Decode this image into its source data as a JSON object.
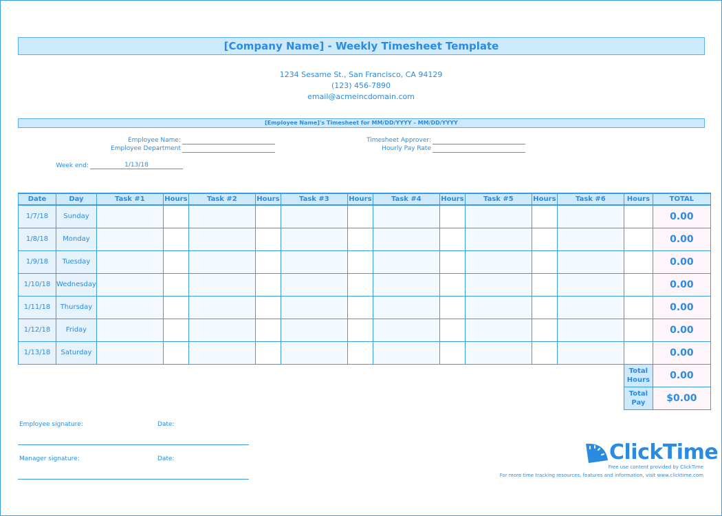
{
  "title": "[Company Name] - Weekly Timesheet Template",
  "address": {
    "street": "1234 Sesame St.,  San Francisco, CA 94129",
    "phone": "(123) 456-7890",
    "email": "email@acmeincdomain.com"
  },
  "band": "[Employee Name]'s Timesheet for MM/DD/YYYY - MM/DD/YYYY",
  "fields": {
    "employee_name": "Employee Name:",
    "employee_department": "Employee Department",
    "approver": "Timesheet Approver:",
    "pay_rate": "Hourly Pay Rate",
    "week_end_label": "Week end:",
    "week_end_value": "1/13/18"
  },
  "table": {
    "headers": [
      "Date",
      "Day",
      "Task #1",
      "Hours",
      "Task #2",
      "Hours",
      "Task #3",
      "Hours",
      "Task #4",
      "Hours",
      "Task #5",
      "Hours",
      "Task #6",
      "Hours",
      "TOTAL"
    ],
    "rows": [
      {
        "date": "1/7/18",
        "day": "Sunday",
        "total": "0.00"
      },
      {
        "date": "1/8/18",
        "day": "Monday",
        "total": "0.00"
      },
      {
        "date": "1/9/18",
        "day": "Tuesday",
        "total": "0.00"
      },
      {
        "date": "1/10/18",
        "day": "Wednesday",
        "total": "0.00"
      },
      {
        "date": "1/11/18",
        "day": "Thursday",
        "total": "0.00"
      },
      {
        "date": "1/12/18",
        "day": "Friday",
        "total": "0.00"
      },
      {
        "date": "1/13/18",
        "day": "Saturday",
        "total": "0.00"
      }
    ],
    "total_hours_label": "Total Hours",
    "total_hours": "0.00",
    "total_pay_label": "Total Pay",
    "total_pay": "$0.00"
  },
  "signatures": {
    "employee": "Employee signature:",
    "manager": "Manager signature:",
    "date": "Date:"
  },
  "footer": {
    "logo": "ClickTime",
    "line1": "Free use content provided by ClickTime",
    "line2": "For more time tracking resources, features and information, visit www.clicktime.com"
  },
  "colors": {
    "accent": "#2b8be0",
    "header_fill": "#cdeafc",
    "total_fill": "#fdf5fa"
  }
}
